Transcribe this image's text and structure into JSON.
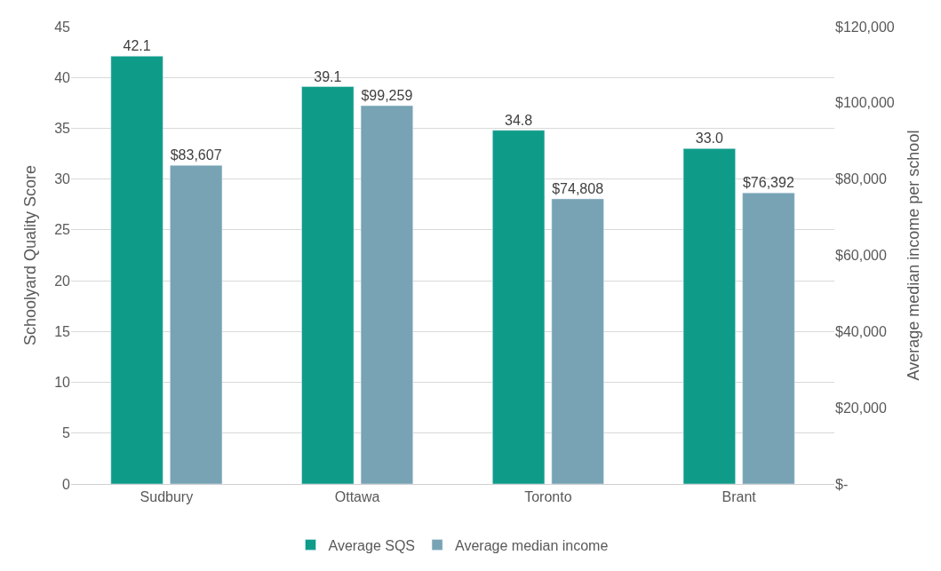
{
  "chart_data": {
    "type": "bar",
    "ylabel": "Schoolyard Quality Score",
    "y2label": "Average median income per school",
    "categories": [
      "Sudbury",
      "Ottawa",
      "Toronto",
      "Brant"
    ],
    "series": [
      {
        "name": "Average SQS",
        "color": "#0e9c89",
        "values": [
          42.1,
          39.1,
          34.8,
          33.0
        ],
        "value_labels": [
          "42.1",
          "39.1",
          "34.8",
          "33.0"
        ]
      },
      {
        "name": "Average median income",
        "color": "#77a3b4",
        "axis": "y2",
        "values": [
          83607,
          99259,
          74808,
          76392
        ],
        "value_labels": [
          "$83,607",
          "$99,259",
          "$74,808",
          "$76,392"
        ]
      }
    ],
    "ylim": [
      0,
      45
    ],
    "yticks": [
      0,
      5,
      10,
      15,
      20,
      25,
      30,
      35,
      40,
      45
    ],
    "y2lim": [
      0,
      120000
    ],
    "y2ticks": [
      {
        "value": 0,
        "label": "$-"
      },
      {
        "value": 20000,
        "label": "$20,000"
      },
      {
        "value": 40000,
        "label": "$40,000"
      },
      {
        "value": 60000,
        "label": "$60,000"
      },
      {
        "value": 80000,
        "label": "$80,000"
      },
      {
        "value": 100000,
        "label": "$100,000"
      },
      {
        "value": 120000,
        "label": "$120,000"
      }
    ],
    "grid": "y",
    "legend": "bottom"
  }
}
